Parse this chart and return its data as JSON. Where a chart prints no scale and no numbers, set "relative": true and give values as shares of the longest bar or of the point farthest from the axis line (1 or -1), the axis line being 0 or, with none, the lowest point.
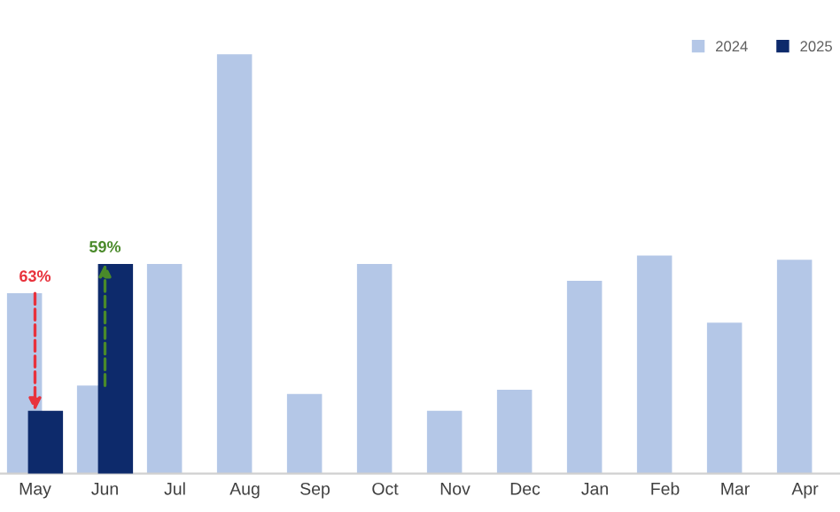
{
  "chart_data": {
    "type": "bar",
    "relative": true,
    "categories": [
      "May",
      "Jun",
      "Jul",
      "Aug",
      "Sep",
      "Oct",
      "Nov",
      "Dec",
      "Jan",
      "Feb",
      "Mar",
      "Apr"
    ],
    "series": [
      {
        "name": "2024",
        "color": "#b4c7e7",
        "values": [
          0.43,
          0.21,
          0.5,
          1,
          0.19,
          0.5,
          0.15,
          0.2,
          0.46,
          0.52,
          0.36,
          0.51
        ]
      },
      {
        "name": "2025",
        "color": "#0d2a6b",
        "values": [
          0.15,
          0.5,
          null,
          null,
          null,
          null,
          null,
          null,
          null,
          null,
          null,
          null
        ]
      }
    ],
    "annotations": [
      {
        "text": "63%",
        "x": "May",
        "y": 0.15
      },
      {
        "text": "59%",
        "x": "Jun",
        "y": 0.5
      }
    ],
    "legend": "top right",
    "grid": false
  }
}
